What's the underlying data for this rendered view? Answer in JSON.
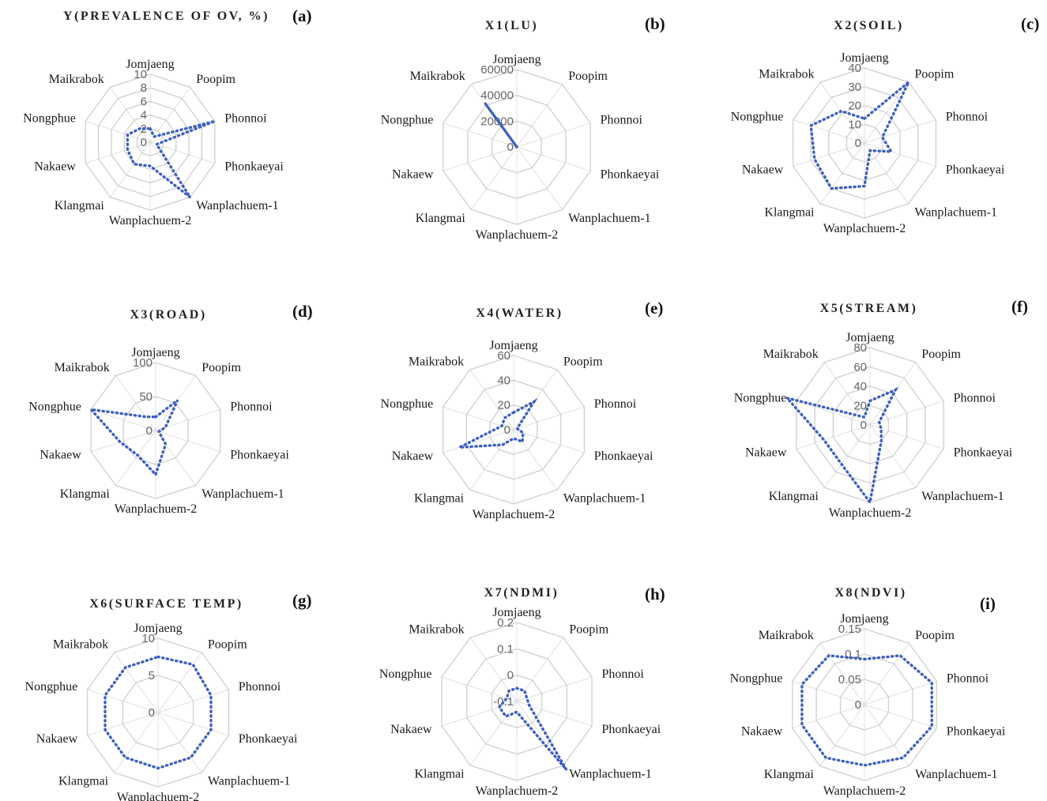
{
  "figure": {
    "series_color": "#3d5fbf"
  },
  "chart_data": [
    {
      "id": "a",
      "letter": "(a)",
      "type": "radar",
      "title": "Y(PREVALENCE OF OV, %)",
      "categories": [
        "Jomjaeng",
        "Poopim",
        "Phonnoi",
        "Phonkaeyai",
        "Wanplachuem-1",
        "Wanplachuem-2",
        "Klangmai",
        "Nakaew",
        "Nongphue",
        "Maikrabok"
      ],
      "ticks": [
        "0",
        "2",
        "4",
        "6",
        "8",
        "10"
      ],
      "range": [
        0,
        10
      ],
      "values": [
        2,
        1,
        10,
        1,
        10,
        3.5,
        4,
        3.5,
        3.5,
        2.5
      ]
    },
    {
      "id": "b",
      "letter": "(b)",
      "type": "radar",
      "title": "X1(LU)",
      "categories": [
        "Jomjaeng",
        "Poopim",
        "Phonnoi",
        "Phonkaeyai",
        "Wanplachuem-1",
        "Wanplachuem-2",
        "Klangmai",
        "Nakaew",
        "Nongphue",
        "Maikrabok"
      ],
      "ticks": [
        "0",
        "20000",
        "40000",
        "60000"
      ],
      "range": [
        0,
        60000
      ],
      "values": [
        0,
        0,
        0,
        0,
        0,
        0,
        0,
        0,
        0,
        42000
      ]
    },
    {
      "id": "c",
      "letter": "(c)",
      "type": "radar",
      "title": "X2(SOIL)",
      "categories": [
        "Jomjaeng",
        "Poopim",
        "Phonnoi",
        "Phonkaeyai",
        "Wanplachuem-1",
        "Wanplachuem-2",
        "Klangmai",
        "Nakaew",
        "Nongphue",
        "Maikrabok"
      ],
      "ticks": [
        "0",
        "10",
        "20",
        "30",
        "40"
      ],
      "range": [
        0,
        40
      ],
      "values": [
        13,
        40,
        10,
        15,
        5,
        23,
        30,
        28,
        30,
        21
      ]
    },
    {
      "id": "d",
      "letter": "(d)",
      "type": "radar",
      "title": "X3(ROAD)",
      "categories": [
        "Jomjaeng",
        "Poopim",
        "Phonnoi",
        "Phonkaeyai",
        "Wanplachuem-1",
        "Wanplachuem-2",
        "Klangmai",
        "Nakaew",
        "Nongphue",
        "Maikrabok"
      ],
      "ticks": [
        "0",
        "50",
        "100"
      ],
      "range": [
        0,
        100
      ],
      "values": [
        20,
        55,
        15,
        5,
        25,
        65,
        45,
        55,
        100,
        25
      ]
    },
    {
      "id": "e",
      "letter": "(e)",
      "type": "radar",
      "title": "X4(WATER)",
      "categories": [
        "Jomjaeng",
        "Poopim",
        "Phonnoi",
        "Phonkaeyai",
        "Wanplachuem-1",
        "Wanplachuem-2",
        "Klangmai",
        "Nakaew",
        "Nongphue",
        "Maikrabok"
      ],
      "ticks": [
        "0",
        "20",
        "40",
        "60"
      ],
      "range": [
        0,
        60
      ],
      "values": [
        14,
        28,
        3,
        8,
        12,
        7,
        15,
        46,
        10,
        12
      ]
    },
    {
      "id": "f",
      "letter": "(f)",
      "type": "radar",
      "title": "X5(STREAM)",
      "categories": [
        "Jomjaeng",
        "Poopim",
        "Phonnoi",
        "Phonkaeyai",
        "Wanplachuem-1",
        "Wanplachuem-2",
        "Klangmai",
        "Nakaew",
        "Nongphue",
        "Maikrabok"
      ],
      "ticks": [
        "0",
        "20",
        "40",
        "60",
        "80"
      ],
      "range": [
        0,
        80
      ],
      "values": [
        25,
        45,
        10,
        12,
        20,
        80,
        50,
        50,
        90,
        10
      ]
    },
    {
      "id": "g",
      "letter": "(g)",
      "type": "radar",
      "title": "X6(SURFACE TEMP)",
      "categories": [
        "Jomjaeng",
        "Poopim",
        "Phonnoi",
        "Phonkaeyai",
        "Wanplachuem-1",
        "Wanplachuem-2",
        "Klangmai",
        "Nakaew",
        "Nongphue",
        "Maikrabok"
      ],
      "ticks": [
        "0",
        "5",
        "10"
      ],
      "range": [
        0,
        10
      ],
      "values": [
        7.5,
        8,
        7.5,
        7.5,
        7.5,
        7.5,
        7.5,
        7.5,
        7.5,
        7.5
      ]
    },
    {
      "id": "h",
      "letter": "(h)",
      "type": "radar",
      "title": "X7(NDMI)",
      "categories": [
        "Jomjaeng",
        "Poopim",
        "Phonnoi",
        "Phonkaeyai",
        "Wanplachuem-1",
        "Wanplachuem-2",
        "Klangmai",
        "Nakaew",
        "Nongphue",
        "Maikrabok"
      ],
      "ticks": [
        "-0.1",
        "0",
        "0.1",
        "0.2"
      ],
      "range": [
        -0.1,
        0.2
      ],
      "values": [
        -0.05,
        -0.05,
        -0.06,
        -0.05,
        0.22,
        -0.06,
        -0.03,
        -0.03,
        -0.06,
        -0.05
      ]
    },
    {
      "id": "i",
      "letter": "(i)",
      "type": "radar",
      "title": "X8(NDVI)",
      "categories": [
        "Jomjaeng",
        "Poopim",
        "Phonnoi",
        "Phonkaeyai",
        "Wanplachuem-1",
        "Wanplachuem-2",
        "Klangmai",
        "Nakaew",
        "Nongphue",
        "Maikrabok"
      ],
      "ticks": [
        "0",
        "0.05",
        "0.1",
        "0.15"
      ],
      "range": [
        0,
        0.15
      ],
      "values": [
        0.09,
        0.12,
        0.14,
        0.14,
        0.13,
        0.12,
        0.13,
        0.13,
        0.13,
        0.12
      ]
    }
  ]
}
